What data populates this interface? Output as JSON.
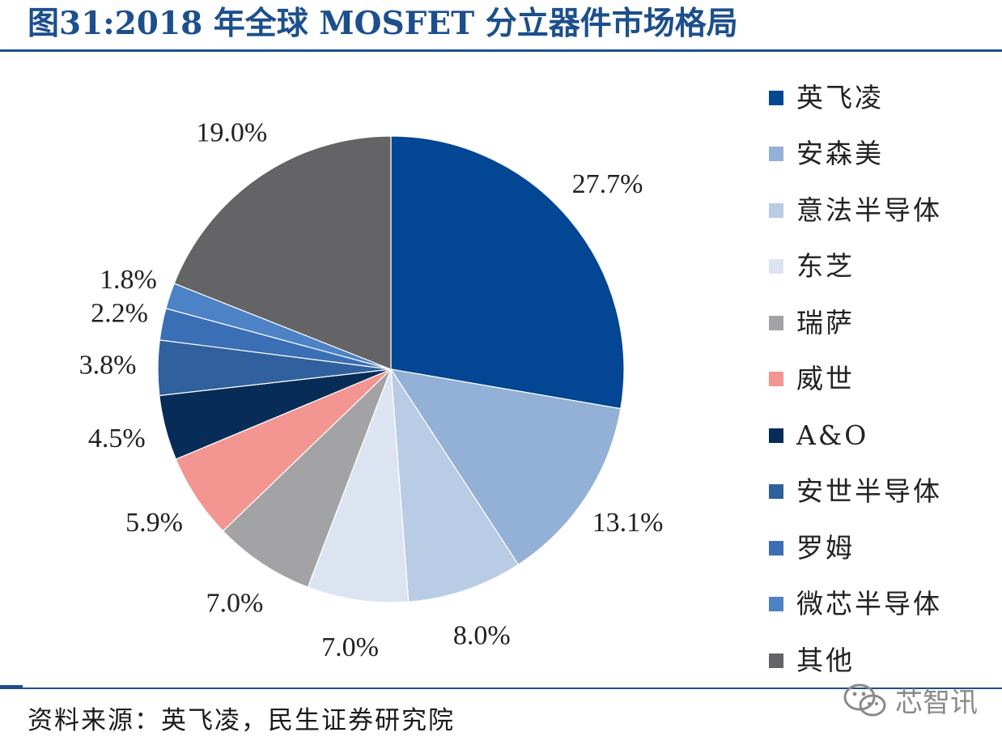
{
  "figure": {
    "title": "图31:2018 年全球 MOSFET 分立器件市场格局",
    "source": "资料来源：英飞凌，民生证券研究院",
    "watermark": "芯智讯"
  },
  "chart_data": {
    "type": "pie",
    "title": "图31:2018 年全球 MOSFET 分立器件市场格局",
    "start_angle_deg": 0,
    "direction": "clockwise",
    "legend_position": "right",
    "slices": [
      {
        "name": "英飞凌",
        "value": 27.7,
        "label": "27.7%",
        "color": "#034694"
      },
      {
        "name": "安森美",
        "value": 13.1,
        "label": "13.1%",
        "color": "#93b0d6"
      },
      {
        "name": "意法半导体",
        "value": 8.0,
        "label": "8.0%",
        "color": "#b9cce6"
      },
      {
        "name": "东芝",
        "value": 7.0,
        "label": "7.0%",
        "color": "#dde4f1"
      },
      {
        "name": "瑞萨",
        "value": 7.0,
        "label": "7.0%",
        "color": "#a3a3a5"
      },
      {
        "name": "威世",
        "value": 5.9,
        "label": "5.9%",
        "color": "#f39591"
      },
      {
        "name": "A&O",
        "value": 4.5,
        "label": "4.5%",
        "color": "#062c57"
      },
      {
        "name": "安世半导体",
        "value": 3.8,
        "label": "3.8%",
        "color": "#30609d"
      },
      {
        "name": "罗姆",
        "value": 2.2,
        "label": "2.2%",
        "color": "#3a6fb6"
      },
      {
        "name": "微芯半导体",
        "value": 1.8,
        "label": "1.8%",
        "color": "#4d82c6"
      },
      {
        "name": "其他",
        "value": 19.0,
        "label": "19.0%",
        "color": "#646365"
      }
    ]
  }
}
